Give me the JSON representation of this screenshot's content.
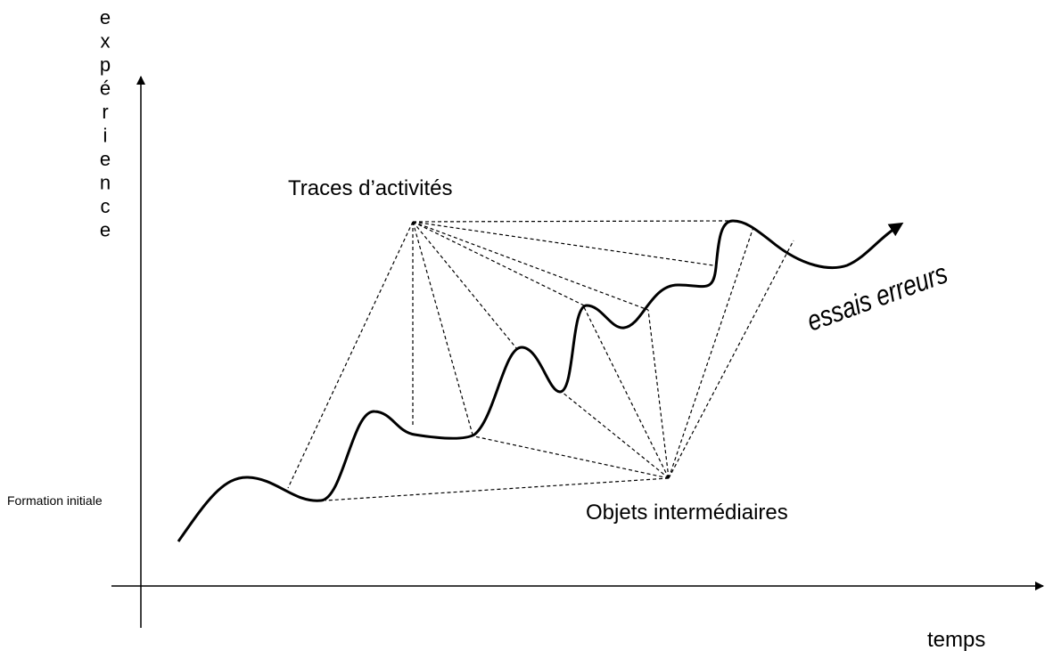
{
  "y_axis_label": [
    "e",
    "x",
    "p",
    "é",
    "r",
    "i",
    "e",
    "n",
    "c",
    "e"
  ],
  "x_axis_label": "temps",
  "labels": {
    "traces": "Traces d’activités",
    "objets": "Objets intermédiaires",
    "formation": "Formation initiale",
    "essais": "essais erreurs"
  }
}
